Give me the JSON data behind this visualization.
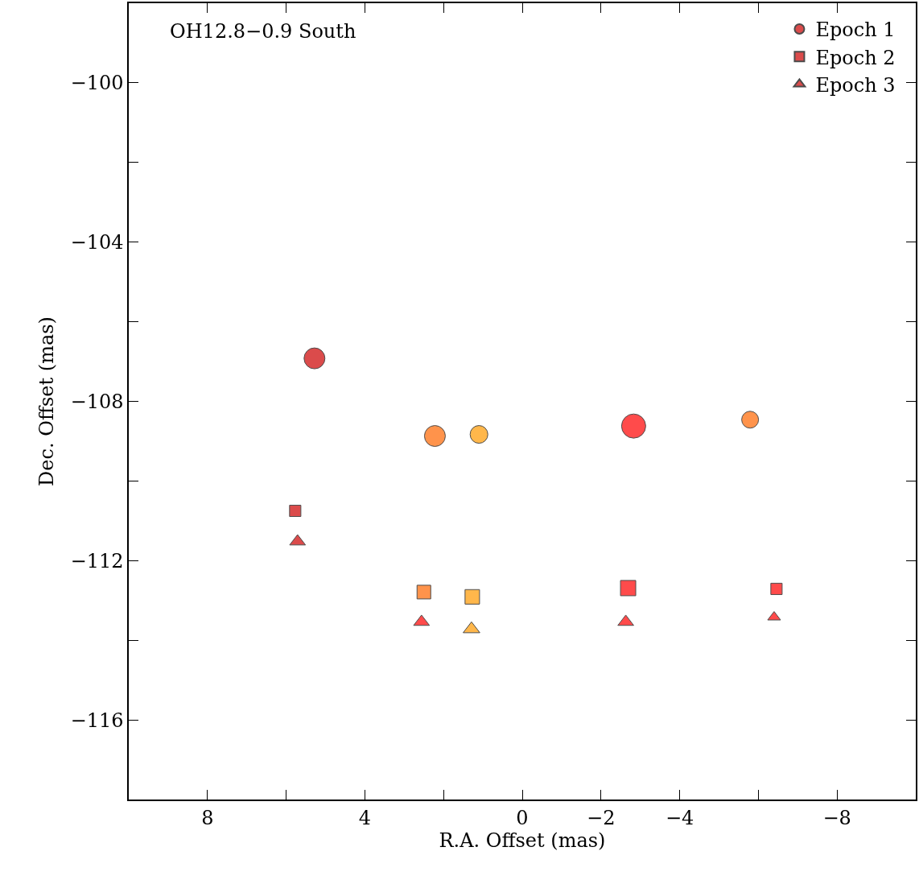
{
  "chart_data": {
    "type": "bubble",
    "xlabel": "R.A. Offset (mas)",
    "ylabel": "Dec. Offset (mas)",
    "annotations": [
      "OH12.8−0.9 South"
    ],
    "xlim": [
      10,
      -10
    ],
    "xticks": [
      8,
      {
        "value": 6,
        "label": null
      },
      4,
      {
        "value": 2,
        "label": null
      },
      0,
      {
        "value": -2,
        "label": "−2"
      },
      {
        "value": -4,
        "label": "−4"
      },
      {
        "value": -6,
        "label": null
      },
      {
        "value": -8,
        "label": "−8"
      }
    ],
    "ylim": [
      -118,
      -98
    ],
    "yticks": [
      {
        "value": -116,
        "label": "−116"
      },
      {
        "value": -114,
        "label": null
      },
      {
        "value": -112,
        "label": "−112"
      },
      {
        "value": -110,
        "label": null
      },
      {
        "value": -108,
        "label": "−108"
      },
      {
        "value": -106,
        "label": null
      },
      {
        "value": -104,
        "label": "−104"
      },
      {
        "value": -102,
        "label": null
      },
      {
        "value": -100,
        "label": "−100"
      }
    ],
    "grid": false,
    "legend": "top right",
    "series": [
      {
        "name": "Epoch 1",
        "marker": "circle",
        "x": [
          5.28,
          2.22,
          1.1,
          -2.83,
          -5.79
        ],
        "values": [
          -106.92,
          -108.87,
          -108.83,
          -108.62,
          -108.46
        ],
        "sizes": [
          0.75,
          0.75,
          0.54,
          1,
          0.49
        ],
        "colors": [
          "#cc0000",
          "#ff6600",
          "#ff9900",
          "#ff0000",
          "#ff6600"
        ]
      },
      {
        "name": "Epoch 2",
        "marker": "square",
        "x": [
          5.77,
          2.5,
          1.27,
          -2.69,
          -6.46
        ],
        "values": [
          -110.75,
          -112.79,
          -112.91,
          -112.69,
          -112.71
        ],
        "sizes": [
          0.28,
          0.41,
          0.46,
          0.51,
          0.28
        ],
        "colors": [
          "#cc0000",
          "#ff6600",
          "#ff9900",
          "#ff0000",
          "#ff0000"
        ]
      },
      {
        "name": "Epoch 3",
        "marker": "triangle",
        "x": [
          5.71,
          2.56,
          1.29,
          -2.63,
          -6.4
        ],
        "values": [
          -111.52,
          -113.54,
          -113.72,
          -113.54,
          -113.42
        ],
        "sizes": [
          0.18,
          0.18,
          0.2,
          0.18,
          0.12
        ],
        "colors": [
          "#cc0000",
          "#ff0000",
          "#ff9900",
          "#ff0000",
          "#ff0000"
        ]
      }
    ]
  }
}
